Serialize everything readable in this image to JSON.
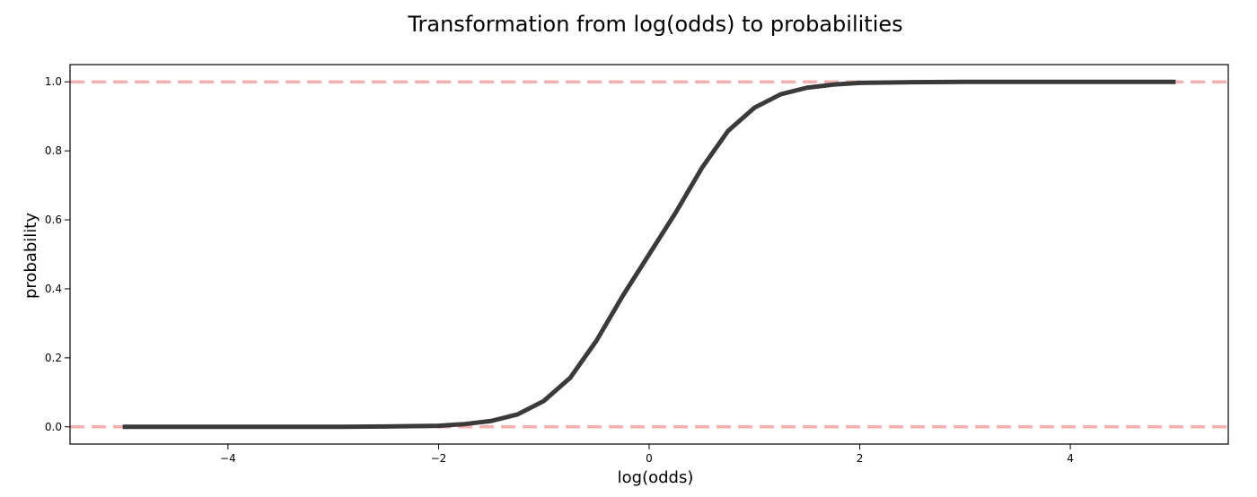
{
  "chart_data": {
    "type": "line",
    "title": "Transformation from log(odds) to probabilities",
    "xlabel": "log(odds)",
    "ylabel": "probability",
    "xlim": [
      -5.5,
      5.5
    ],
    "ylim": [
      -0.05,
      1.05
    ],
    "xticks": [
      -4,
      -2,
      0,
      2,
      4
    ],
    "xtick_labels": [
      "−4",
      "−2",
      "0",
      "2",
      "4"
    ],
    "yticks": [
      0.0,
      0.2,
      0.4,
      0.6,
      0.8,
      1.0
    ],
    "ytick_labels": [
      "0.0",
      "0.2",
      "0.4",
      "0.6",
      "0.8",
      "1.0"
    ],
    "grid": false,
    "series": [
      {
        "color": "#3a3a3a",
        "x": [
          -5.0,
          -4.5,
          -4.0,
          -3.5,
          -3.0,
          -2.5,
          -2.0,
          -1.75,
          -1.5,
          -1.25,
          -1.0,
          -0.75,
          -0.5,
          -0.25,
          0.0,
          0.25,
          0.5,
          0.75,
          1.0,
          1.25,
          1.5,
          1.75,
          2.0,
          2.5,
          3.0,
          3.5,
          4.0,
          4.5,
          5.0
        ],
        "y": [
          0.0,
          0.0,
          0.0,
          0.0,
          0.0,
          0.001,
          0.003,
          0.008,
          0.017,
          0.036,
          0.075,
          0.142,
          0.25,
          0.38,
          0.5,
          0.62,
          0.75,
          0.858,
          0.925,
          0.964,
          0.983,
          0.992,
          0.997,
          0.999,
          1.0,
          1.0,
          1.0,
          1.0,
          1.0
        ]
      }
    ],
    "reference_lines": [
      {
        "y": 0.0,
        "color": "#f4b0b0",
        "style": "dashed"
      },
      {
        "y": 1.0,
        "color": "#f4b0b0",
        "style": "dashed"
      }
    ]
  }
}
